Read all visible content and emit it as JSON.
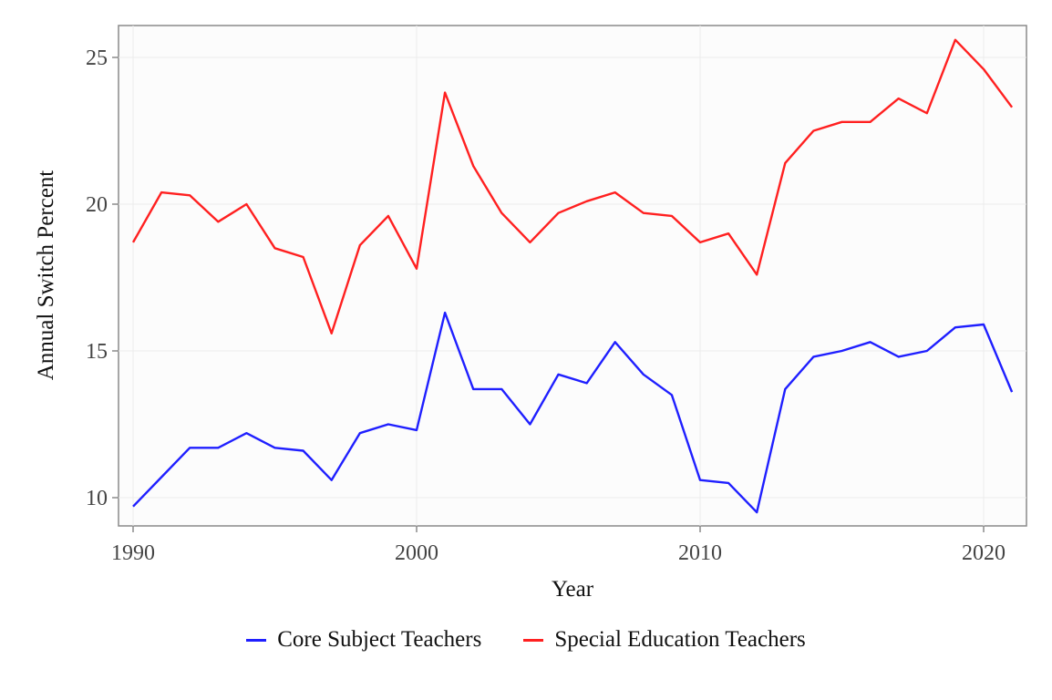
{
  "chart_data": {
    "type": "line",
    "title": "",
    "xlabel": "Year",
    "ylabel": "Annual Switch Percent",
    "xlim": [
      1989.5,
      2021.5
    ],
    "ylim": [
      9.0,
      26.1
    ],
    "x_ticks": [
      1990,
      2000,
      2010,
      2020
    ],
    "y_ticks": [
      10,
      15,
      20,
      25
    ],
    "grid": true,
    "legend_position": "bottom",
    "x": [
      1990,
      1991,
      1992,
      1993,
      1994,
      1995,
      1996,
      1997,
      1998,
      1999,
      2000,
      2001,
      2002,
      2003,
      2004,
      2005,
      2006,
      2007,
      2008,
      2009,
      2010,
      2011,
      2012,
      2013,
      2014,
      2015,
      2016,
      2017,
      2018,
      2019,
      2020,
      2021
    ],
    "series": [
      {
        "name": "Core Subject Teachers",
        "color": "#1f1fff",
        "values": [
          9.7,
          10.7,
          11.7,
          11.7,
          12.2,
          11.7,
          11.6,
          10.6,
          12.2,
          12.5,
          12.3,
          16.3,
          13.7,
          13.7,
          12.5,
          14.2,
          13.9,
          15.3,
          14.2,
          13.5,
          10.6,
          10.5,
          9.5,
          13.7,
          14.8,
          15.0,
          15.3,
          14.8,
          15.0,
          15.8,
          15.9,
          13.6
        ]
      },
      {
        "name": "Special Education Teachers",
        "color": "#ff2020",
        "values": [
          18.7,
          20.4,
          20.3,
          19.4,
          20.0,
          18.5,
          18.2,
          15.6,
          18.6,
          19.6,
          17.8,
          23.8,
          21.3,
          19.7,
          18.7,
          19.7,
          20.1,
          20.4,
          19.7,
          19.6,
          18.7,
          19.0,
          17.6,
          21.4,
          22.5,
          22.8,
          22.8,
          23.6,
          23.1,
          25.6,
          24.6,
          23.3
        ]
      }
    ]
  },
  "legend": {
    "items": [
      {
        "label": "Core Subject Teachers",
        "color": "#1f1fff"
      },
      {
        "label": "Special Education Teachers",
        "color": "#ff2020"
      }
    ]
  }
}
